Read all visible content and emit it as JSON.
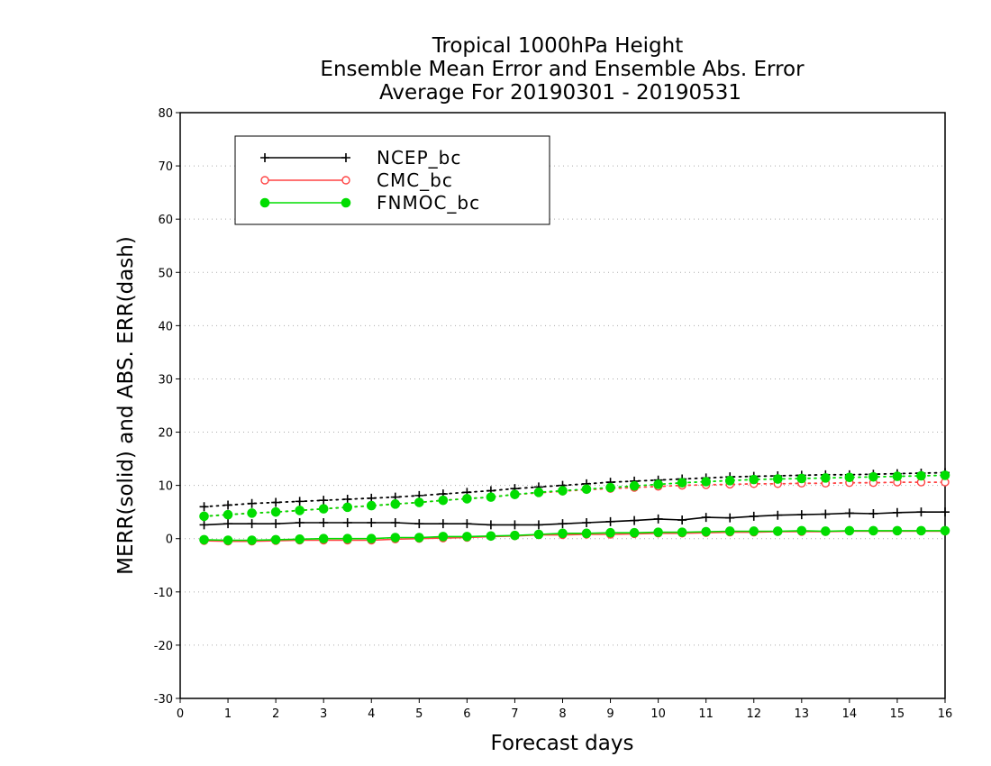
{
  "chart_data": {
    "type": "line",
    "title": [
      "Tropical 1000hPa Height",
      "Ensemble Mean Error and Ensemble Abs. Error",
      "Average For 20190301 - 20190531"
    ],
    "xlabel": "Forecast days",
    "ylabel": "MERR(solid) and ABS. ERR(dash)",
    "xlim": [
      0,
      16
    ],
    "ylim": [
      -30,
      80
    ],
    "xticks": [
      "0",
      "1",
      "2",
      "3",
      "4",
      "5",
      "6",
      "7",
      "8",
      "9",
      "10",
      "11",
      "12",
      "13",
      "14",
      "15",
      "16"
    ],
    "yticks": [
      "-30",
      "-20",
      "-10",
      "0",
      "10",
      "20",
      "30",
      "40",
      "50",
      "60",
      "70",
      "80"
    ],
    "grid": "horizontal dotted",
    "legend_position": "top-left",
    "x": [
      0.5,
      1,
      1.5,
      2,
      2.5,
      3,
      3.5,
      4,
      4.5,
      5,
      5.5,
      6,
      6.5,
      7,
      7.5,
      8,
      8.5,
      9,
      9.5,
      10,
      10.5,
      11,
      11.5,
      12,
      12.5,
      13,
      13.5,
      14,
      14.5,
      15,
      15.5,
      16
    ],
    "series": [
      {
        "name": "NCEP_bc",
        "color": "#000000",
        "marker": "plus",
        "merr": [
          2.6,
          2.8,
          2.8,
          2.8,
          3.0,
          3.0,
          3.0,
          3.0,
          3.0,
          2.8,
          2.8,
          2.8,
          2.6,
          2.6,
          2.6,
          2.8,
          3.0,
          3.2,
          3.4,
          3.7,
          3.5,
          4.0,
          3.9,
          4.2,
          4.4,
          4.5,
          4.6,
          4.8,
          4.7,
          4.9,
          5.0,
          5.0
        ],
        "abs_err": [
          6.0,
          6.3,
          6.6,
          6.8,
          7.0,
          7.2,
          7.4,
          7.6,
          7.8,
          8.1,
          8.4,
          8.7,
          9.0,
          9.4,
          9.7,
          10.0,
          10.3,
          10.6,
          10.8,
          11.0,
          11.2,
          11.4,
          11.6,
          11.7,
          11.8,
          11.9,
          12.0,
          12.0,
          12.1,
          12.2,
          12.3,
          12.4
        ]
      },
      {
        "name": "CMC_bc",
        "color": "#ff4444",
        "marker": "open-circle",
        "merr": [
          -0.4,
          -0.5,
          -0.5,
          -0.4,
          -0.3,
          -0.3,
          -0.3,
          -0.3,
          -0.1,
          0.0,
          0.1,
          0.2,
          0.4,
          0.5,
          0.7,
          0.7,
          0.8,
          0.8,
          0.9,
          1.0,
          1.0,
          1.1,
          1.2,
          1.2,
          1.3,
          1.3,
          1.3,
          1.4,
          1.4,
          1.4,
          1.4,
          1.4
        ],
        "abs_err": [
          4.2,
          4.5,
          4.8,
          5.0,
          5.3,
          5.6,
          5.9,
          6.2,
          6.5,
          6.8,
          7.2,
          7.5,
          7.8,
          8.3,
          8.6,
          8.9,
          9.2,
          9.4,
          9.6,
          9.8,
          10.0,
          10.1,
          10.2,
          10.3,
          10.3,
          10.4,
          10.4,
          10.5,
          10.5,
          10.6,
          10.6,
          10.6
        ]
      },
      {
        "name": "FNMOC_bc",
        "color": "#00dd00",
        "marker": "filled-circle",
        "merr": [
          -0.2,
          -0.3,
          -0.3,
          -0.2,
          -0.1,
          0.0,
          0.0,
          0.0,
          0.2,
          0.2,
          0.4,
          0.4,
          0.5,
          0.6,
          0.8,
          1.0,
          1.0,
          1.1,
          1.1,
          1.2,
          1.2,
          1.3,
          1.4,
          1.4,
          1.4,
          1.5,
          1.4,
          1.5,
          1.5,
          1.5,
          1.5,
          1.5
        ],
        "abs_err": [
          4.2,
          4.5,
          4.8,
          5.0,
          5.3,
          5.6,
          5.9,
          6.2,
          6.5,
          6.8,
          7.2,
          7.5,
          7.8,
          8.3,
          8.7,
          9.0,
          9.3,
          9.6,
          9.9,
          10.2,
          10.5,
          10.7,
          10.9,
          11.1,
          11.2,
          11.3,
          11.4,
          11.5,
          11.6,
          11.7,
          11.8,
          11.9
        ]
      }
    ]
  }
}
